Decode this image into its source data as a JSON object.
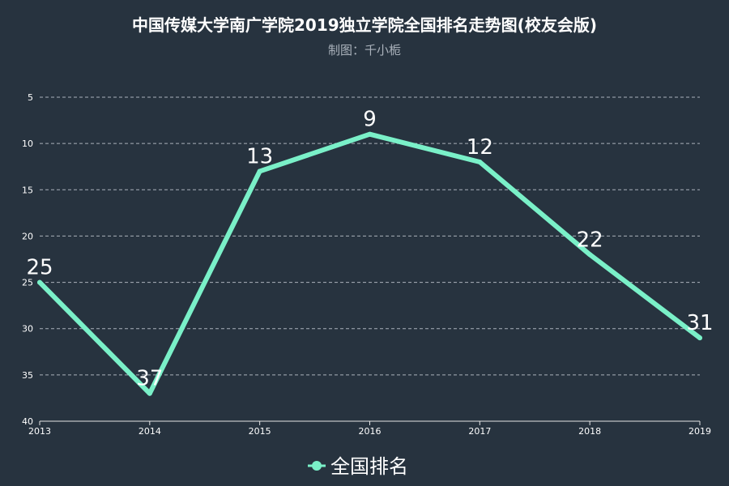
{
  "chart_data": {
    "type": "line",
    "title": "中国传媒大学南广学院2019独立学院全国排名走势图(校友会版)",
    "subtitle": "制图：千小栀",
    "categories": [
      "2013",
      "2014",
      "2015",
      "2016",
      "2017",
      "2018",
      "2019"
    ],
    "series": [
      {
        "name": "全国排名",
        "values": [
          25,
          37,
          13,
          9,
          12,
          22,
          31
        ]
      }
    ],
    "y_axis": {
      "inverted": true,
      "ylim": [
        5,
        40
      ],
      "ticks": [
        5,
        10,
        15,
        20,
        25,
        30,
        35,
        40
      ]
    },
    "grid": "horizontal-dashed",
    "legend_position": "bottom-center",
    "data_labels": true,
    "colors": {
      "background": "#27333f",
      "line": "#7af0c8",
      "text": "#ffffff",
      "subtitle": "#aab2bb",
      "grid": "#aab2bb"
    }
  }
}
